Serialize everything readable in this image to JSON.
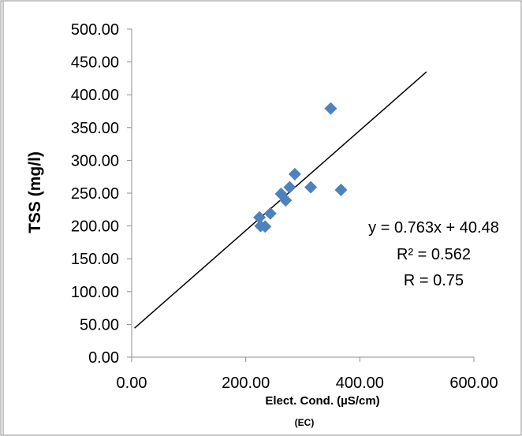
{
  "chart_data": {
    "type": "scatter",
    "title": "",
    "ylabel": "TSS (mg/l)",
    "xlabel": "Elect. Cond. (µS/cm)",
    "xlabel_sub": "(EC)",
    "xlim": [
      0,
      600
    ],
    "ylim": [
      0,
      500
    ],
    "xticks": [
      0,
      200,
      400,
      600
    ],
    "yticks": [
      0,
      50,
      100,
      150,
      200,
      250,
      300,
      350,
      400,
      450,
      500
    ],
    "xtick_labels": [
      "0.00",
      "200.00",
      "400.00",
      "600.00"
    ],
    "ytick_labels": [
      "0.00",
      "50.00",
      "100.00",
      "150.00",
      "200.00",
      "250.00",
      "300.00",
      "350.00",
      "400.00",
      "450.00",
      "500.00"
    ],
    "grid": false,
    "legend": "none",
    "marker": "diamond",
    "marker_color": "#4f81bd",
    "series": [
      {
        "x": [
          224,
          226,
          234,
          243,
          262,
          270,
          277,
          286,
          314,
          349,
          367
        ],
        "y": [
          213,
          200,
          199,
          219,
          249,
          239,
          259,
          279,
          259,
          379,
          255
        ]
      }
    ],
    "trendline": {
      "slope": 0.763,
      "intercept": 40.48,
      "x_range": [
        5,
        517
      ],
      "color": "#000000"
    },
    "annotations": [
      "y = 0.763x + 40.48",
      "R² = 0.562",
      "R = 0.75"
    ]
  }
}
